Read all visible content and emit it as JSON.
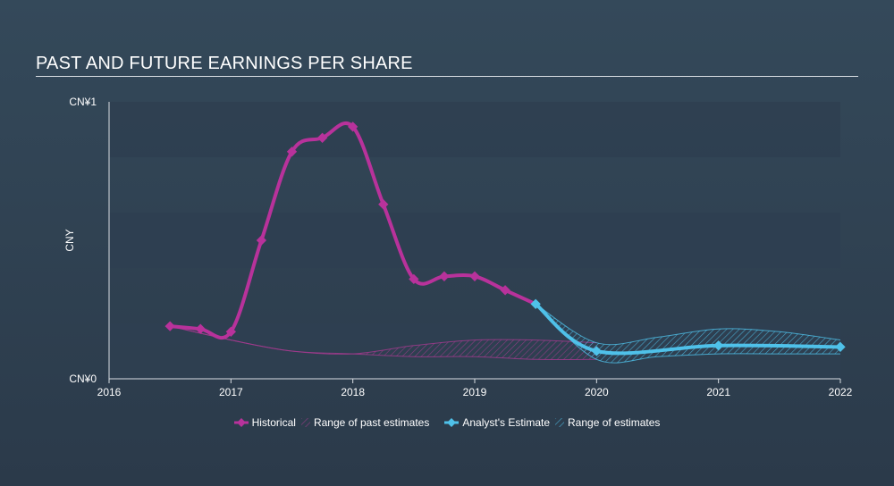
{
  "title": "PAST AND FUTURE EARNINGS PER SHARE",
  "chart_data": {
    "type": "line",
    "title": "PAST AND FUTURE EARNINGS PER SHARE",
    "ylabel": "CNY",
    "ytick_labels": [
      "CN¥0",
      "CN¥1"
    ],
    "xtick_labels": [
      "2016",
      "2017",
      "2018",
      "2019",
      "2020",
      "2021",
      "2022"
    ],
    "xlim": [
      2016,
      2022
    ],
    "ylim": [
      0,
      1
    ],
    "grid": "horizontal bands",
    "legend_position": "bottom-center",
    "colors": {
      "historical": "#b8329b",
      "estimate": "#4fc1e9",
      "band": "#8c3d7e",
      "grid_band": "#2f3f51"
    },
    "series": [
      {
        "name": "Historical",
        "x": [
          2016.5,
          2016.75,
          2017.0,
          2017.25,
          2017.5,
          2017.75,
          2018.0,
          2018.25,
          2018.5,
          2018.75,
          2019.0,
          2019.25,
          2019.5
        ],
        "y": [
          0.19,
          0.18,
          0.17,
          0.5,
          0.82,
          0.87,
          0.91,
          0.63,
          0.36,
          0.37,
          0.37,
          0.32,
          0.27
        ]
      },
      {
        "name": "Analyst's Estimate",
        "x": [
          2019.5,
          2020.0,
          2021.0,
          2022.0
        ],
        "y": [
          0.27,
          0.1,
          0.12,
          0.115
        ]
      }
    ],
    "ranges": [
      {
        "name": "Range of past estimates",
        "x": [
          2016.5,
          2017.0,
          2017.5,
          2018.0,
          2018.5,
          2019.0,
          2019.5,
          2020.0
        ],
        "upper": [
          0.19,
          0.14,
          0.1,
          0.09,
          0.12,
          0.14,
          0.14,
          0.13
        ],
        "lower": [
          0.19,
          0.14,
          0.1,
          0.09,
          0.08,
          0.08,
          0.07,
          0.07
        ]
      },
      {
        "name": "Range of estimates",
        "x": [
          2019.5,
          2020.0,
          2020.5,
          2021.0,
          2021.5,
          2022.0
        ],
        "upper": [
          0.27,
          0.13,
          0.15,
          0.18,
          0.17,
          0.14
        ],
        "lower": [
          0.27,
          0.07,
          0.08,
          0.09,
          0.09,
          0.09
        ]
      }
    ]
  },
  "legend": {
    "historical": "Historical",
    "past_range": "Range of past estimates",
    "estimate": "Analyst's Estimate",
    "estimate_range": "Range of estimates"
  }
}
